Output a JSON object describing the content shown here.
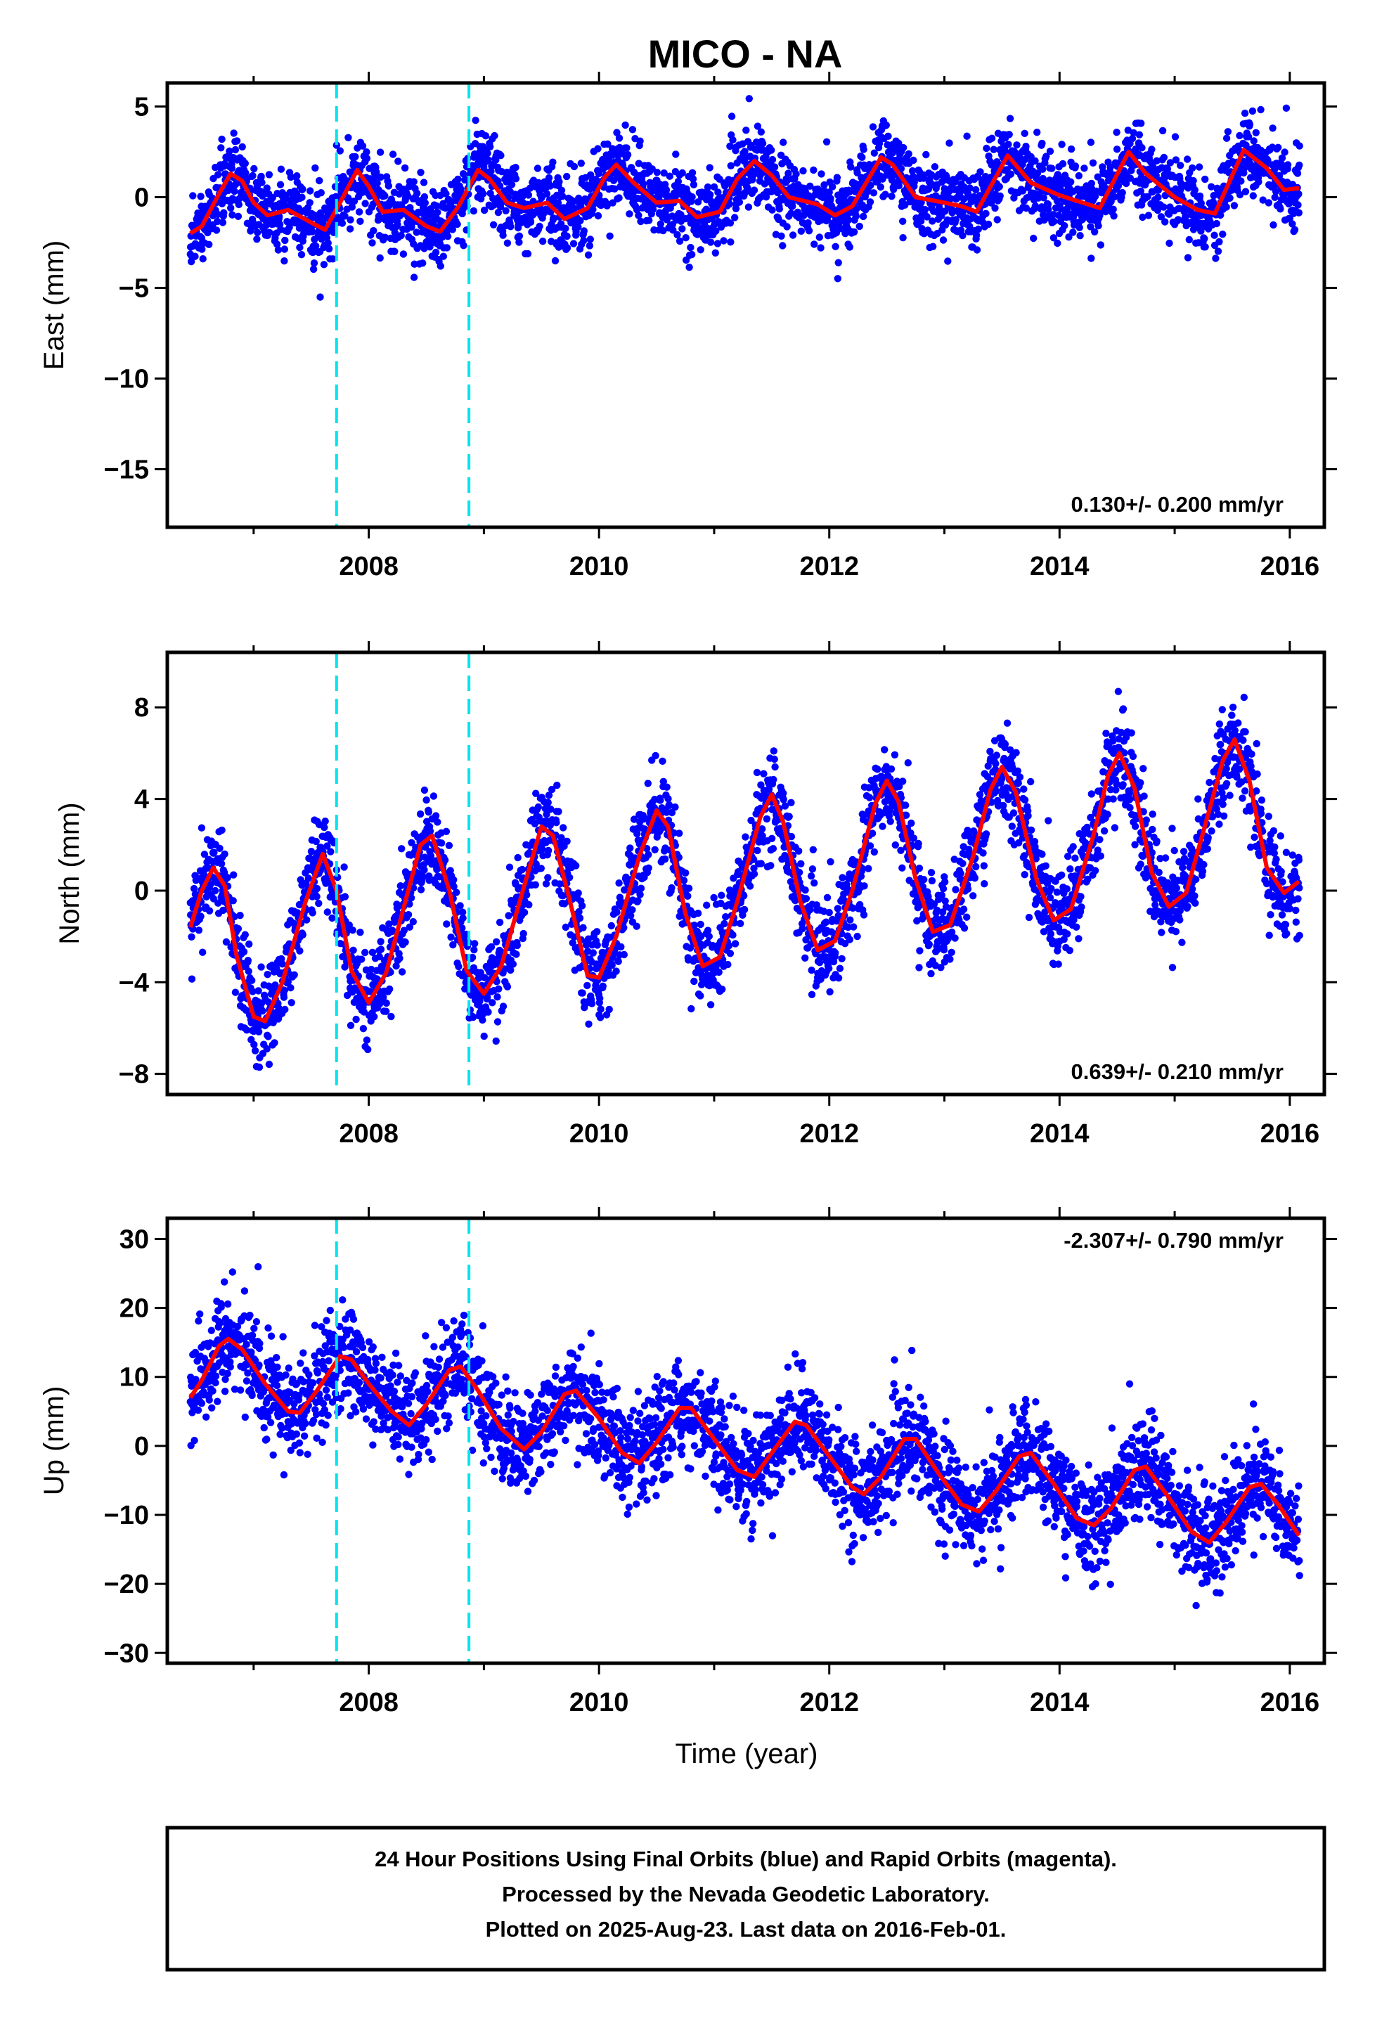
{
  "chart_data": {
    "title": "MICO - NA",
    "type": "scatter",
    "xlabel": "Time (year)",
    "xlim": [
      2006.25,
      2016.3
    ],
    "xticks": [
      2008,
      2010,
      2012,
      2014,
      2016
    ],
    "marker_color": "#0000ff",
    "fit_color": "#ff0000",
    "event_color": "#00e5ee",
    "event_lines": [
      2007.72,
      2008.87
    ],
    "data_start": 2006.45,
    "data_end": 2016.085,
    "panels": [
      {
        "name": "east",
        "ylabel": "East (mm)",
        "ylim": [
          -18.2,
          6.3
        ],
        "yticks": [
          5,
          0,
          -5,
          -10,
          -15
        ],
        "rate_text": "0.130+/- 0.200 mm/yr",
        "rate_position": "bottom-right",
        "series": [
          {
            "type": "line",
            "points": [
              [
                2006.45,
                -2.0
              ],
              [
                2006.55,
                -1.6
              ],
              [
                2006.7,
                0.2
              ],
              [
                2006.8,
                1.3
              ],
              [
                2006.9,
                0.9
              ],
              [
                2007.0,
                -0.3
              ],
              [
                2007.12,
                -1.0
              ],
              [
                2007.3,
                -0.7
              ],
              [
                2007.5,
                -1.4
              ],
              [
                2007.62,
                -1.8
              ],
              [
                2007.75,
                -0.3
              ],
              [
                2007.9,
                1.5
              ],
              [
                2008.0,
                0.6
              ],
              [
                2008.12,
                -0.8
              ],
              [
                2008.3,
                -0.7
              ],
              [
                2008.5,
                -1.6
              ],
              [
                2008.62,
                -1.9
              ],
              [
                2008.78,
                -0.5
              ],
              [
                2008.95,
                1.5
              ],
              [
                2009.05,
                1.0
              ],
              [
                2009.2,
                -0.3
              ],
              [
                2009.35,
                -0.6
              ],
              [
                2009.55,
                -0.3
              ],
              [
                2009.7,
                -1.2
              ],
              [
                2009.9,
                -0.6
              ],
              [
                2010.05,
                1.1
              ],
              [
                2010.15,
                1.8
              ],
              [
                2010.3,
                0.8
              ],
              [
                2010.5,
                -0.3
              ],
              [
                2010.7,
                -0.2
              ],
              [
                2010.85,
                -1.1
              ],
              [
                2011.05,
                -0.8
              ],
              [
                2011.2,
                1.0
              ],
              [
                2011.35,
                2.0
              ],
              [
                2011.5,
                1.2
              ],
              [
                2011.65,
                0.0
              ],
              [
                2011.9,
                -0.4
              ],
              [
                2012.05,
                -1.0
              ],
              [
                2012.2,
                -0.5
              ],
              [
                2012.45,
                2.2
              ],
              [
                2012.55,
                1.8
              ],
              [
                2012.75,
                0.0
              ],
              [
                2013.0,
                -0.3
              ],
              [
                2013.15,
                -0.5
              ],
              [
                2013.28,
                -0.8
              ],
              [
                2013.55,
                2.3
              ],
              [
                2013.75,
                0.8
              ],
              [
                2014.0,
                0.1
              ],
              [
                2014.2,
                -0.3
              ],
              [
                2014.35,
                -0.6
              ],
              [
                2014.6,
                2.5
              ],
              [
                2014.75,
                1.3
              ],
              [
                2015.0,
                0.0
              ],
              [
                2015.2,
                -0.7
              ],
              [
                2015.35,
                -0.9
              ],
              [
                2015.6,
                2.6
              ],
              [
                2015.8,
                1.6
              ],
              [
                2015.95,
                0.4
              ],
              [
                2016.08,
                0.5
              ]
            ]
          }
        ]
      },
      {
        "name": "north",
        "ylabel": "North (mm)",
        "ylim": [
          -8.9,
          10.4
        ],
        "yticks": [
          8,
          4,
          0,
          -4,
          -8
        ],
        "rate_text": "0.639+/- 0.210 mm/yr",
        "rate_position": "bottom-right",
        "series": [
          {
            "type": "line",
            "points": [
              [
                2006.45,
                -1.6
              ],
              [
                2006.55,
                0.0
              ],
              [
                2006.65,
                1.0
              ],
              [
                2006.75,
                0.2
              ],
              [
                2006.85,
                -2.8
              ],
              [
                2007.0,
                -5.5
              ],
              [
                2007.1,
                -5.7
              ],
              [
                2007.25,
                -4.0
              ],
              [
                2007.45,
                -0.5
              ],
              [
                2007.6,
                1.6
              ],
              [
                2007.72,
                0.0
              ],
              [
                2007.85,
                -3.5
              ],
              [
                2008.0,
                -4.9
              ],
              [
                2008.15,
                -3.6
              ],
              [
                2008.3,
                -0.8
              ],
              [
                2008.45,
                2.0
              ],
              [
                2008.55,
                2.4
              ],
              [
                2008.7,
                0.0
              ],
              [
                2008.85,
                -3.5
              ],
              [
                2009.0,
                -4.5
              ],
              [
                2009.15,
                -3.3
              ],
              [
                2009.35,
                0.2
              ],
              [
                2009.5,
                2.8
              ],
              [
                2009.6,
                2.4
              ],
              [
                2009.75,
                -0.5
              ],
              [
                2009.9,
                -3.7
              ],
              [
                2010.0,
                -3.8
              ],
              [
                2010.15,
                -2.0
              ],
              [
                2010.35,
                1.5
              ],
              [
                2010.5,
                3.5
              ],
              [
                2010.6,
                2.8
              ],
              [
                2010.75,
                -1.0
              ],
              [
                2010.9,
                -3.3
              ],
              [
                2011.05,
                -2.9
              ],
              [
                2011.2,
                -0.5
              ],
              [
                2011.4,
                3.2
              ],
              [
                2011.5,
                4.2
              ],
              [
                2011.6,
                3.0
              ],
              [
                2011.75,
                -0.5
              ],
              [
                2011.9,
                -2.6
              ],
              [
                2012.05,
                -2.2
              ],
              [
                2012.2,
                0.0
              ],
              [
                2012.4,
                3.8
              ],
              [
                2012.5,
                4.8
              ],
              [
                2012.6,
                3.9
              ],
              [
                2012.75,
                0.5
              ],
              [
                2012.9,
                -1.8
              ],
              [
                2013.05,
                -1.5
              ],
              [
                2013.25,
                1.5
              ],
              [
                2013.4,
                4.4
              ],
              [
                2013.5,
                5.4
              ],
              [
                2013.62,
                4.3
              ],
              [
                2013.8,
                0.5
              ],
              [
                2013.95,
                -1.3
              ],
              [
                2014.1,
                -0.8
              ],
              [
                2014.3,
                2.5
              ],
              [
                2014.42,
                5.0
              ],
              [
                2014.52,
                6.0
              ],
              [
                2014.65,
                4.5
              ],
              [
                2014.8,
                0.8
              ],
              [
                2014.95,
                -0.7
              ],
              [
                2015.1,
                -0.1
              ],
              [
                2015.3,
                3.5
              ],
              [
                2015.42,
                5.7
              ],
              [
                2015.52,
                6.6
              ],
              [
                2015.65,
                4.8
              ],
              [
                2015.8,
                1.0
              ],
              [
                2015.95,
                -0.1
              ],
              [
                2016.08,
                0.4
              ]
            ]
          }
        ]
      },
      {
        "name": "up",
        "ylabel": "Up (mm)",
        "ylim": [
          -31.5,
          33.0
        ],
        "yticks": [
          30,
          20,
          10,
          0,
          -10,
          -20,
          -30
        ],
        "rate_text": "-2.307+/- 0.790 mm/yr",
        "rate_position": "top-right",
        "series": [
          {
            "type": "line",
            "points": [
              [
                2006.45,
                7.0
              ],
              [
                2006.55,
                9.5
              ],
              [
                2006.7,
                14.5
              ],
              [
                2006.78,
                15.5
              ],
              [
                2006.9,
                14.0
              ],
              [
                2007.1,
                9.0
              ],
              [
                2007.3,
                5.0
              ],
              [
                2007.4,
                4.8
              ],
              [
                2007.55,
                8.0
              ],
              [
                2007.75,
                13.0
              ],
              [
                2007.85,
                12.5
              ],
              [
                2008.0,
                9.0
              ],
              [
                2008.2,
                5.0
              ],
              [
                2008.35,
                3.0
              ],
              [
                2008.5,
                6.0
              ],
              [
                2008.7,
                11.0
              ],
              [
                2008.8,
                11.5
              ],
              [
                2008.95,
                8.0
              ],
              [
                2009.15,
                2.5
              ],
              [
                2009.35,
                -0.5
              ],
              [
                2009.5,
                2.0
              ],
              [
                2009.7,
                7.5
              ],
              [
                2009.8,
                8.0
              ],
              [
                2010.0,
                4.0
              ],
              [
                2010.2,
                -1.0
              ],
              [
                2010.35,
                -2.5
              ],
              [
                2010.5,
                0.5
              ],
              [
                2010.7,
                5.5
              ],
              [
                2010.8,
                5.5
              ],
              [
                2011.0,
                1.0
              ],
              [
                2011.2,
                -3.5
              ],
              [
                2011.35,
                -4.5
              ],
              [
                2011.5,
                -1.0
              ],
              [
                2011.7,
                3.5
              ],
              [
                2011.8,
                3.0
              ],
              [
                2012.0,
                -1.5
              ],
              [
                2012.2,
                -6.0
              ],
              [
                2012.3,
                -7.0
              ],
              [
                2012.45,
                -4.5
              ],
              [
                2012.65,
                1.0
              ],
              [
                2012.75,
                1.0
              ],
              [
                2012.95,
                -4.0
              ],
              [
                2013.15,
                -8.5
              ],
              [
                2013.3,
                -9.5
              ],
              [
                2013.45,
                -6.5
              ],
              [
                2013.65,
                -1.5
              ],
              [
                2013.75,
                -1.0
              ],
              [
                2013.95,
                -5.5
              ],
              [
                2014.15,
                -10.5
              ],
              [
                2014.3,
                -11.5
              ],
              [
                2014.45,
                -9.0
              ],
              [
                2014.65,
                -3.5
              ],
              [
                2014.75,
                -3.0
              ],
              [
                2014.95,
                -7.5
              ],
              [
                2015.15,
                -12.5
              ],
              [
                2015.3,
                -14.0
              ],
              [
                2015.45,
                -11.0
              ],
              [
                2015.65,
                -6.0
              ],
              [
                2015.75,
                -5.5
              ],
              [
                2015.9,
                -8.5
              ],
              [
                2016.08,
                -13.0
              ]
            ]
          }
        ]
      }
    ]
  },
  "caption": {
    "line1": "24 Hour Positions Using Final Orbits (blue) and Rapid Orbits (magenta).",
    "line2": "Processed by the Nevada Geodetic Laboratory.",
    "line3": "Plotted on 2025-Aug-23. Last data on 2016-Feb-01."
  }
}
